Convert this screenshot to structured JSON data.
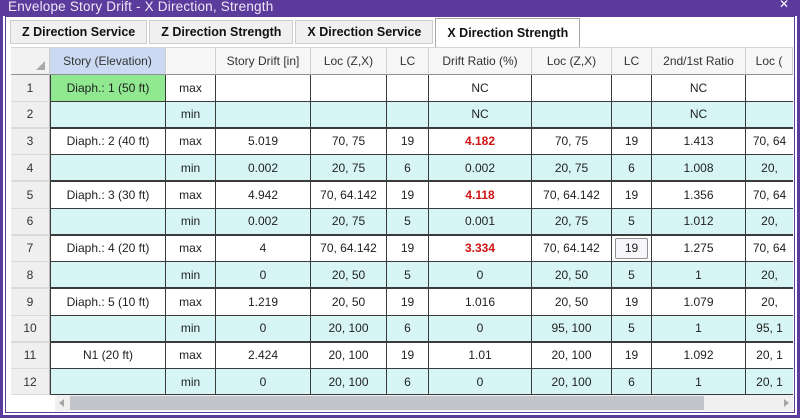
{
  "window": {
    "title": "Envelope Story Drift - X Direction, Strength",
    "close_glyph": "✕"
  },
  "tabs": [
    {
      "label": "Z Direction Service",
      "active": false
    },
    {
      "label": "Z Direction Strength",
      "active": false
    },
    {
      "label": "X Direction Service",
      "active": false
    },
    {
      "label": "X Direction Strength",
      "active": true
    }
  ],
  "table": {
    "corner_icon": "select-all-triangle",
    "headers": [
      "Story (Elevation)",
      "",
      "Story Drift [in]",
      "Loc (Z,X)",
      "LC",
      "Drift Ratio (%)",
      "Loc (Z,X)",
      "LC",
      "2nd/1st Ratio",
      "Loc ("
    ],
    "rows": [
      {
        "num": "1",
        "story": "Diaph.: 1 (50 ft)",
        "story_green": true,
        "mode": "max",
        "drift": "",
        "loc1": "",
        "lc1": "",
        "ratio": "NC",
        "ratio_red": false,
        "loc2": "",
        "lc2": "",
        "ratio2": "NC",
        "loc3": ""
      },
      {
        "num": "2",
        "story": "",
        "story_green": false,
        "mode": "min",
        "drift": "",
        "loc1": "",
        "lc1": "",
        "ratio": "NC",
        "ratio_red": false,
        "loc2": "",
        "lc2": "",
        "ratio2": "NC",
        "loc3": ""
      },
      {
        "num": "3",
        "story": "Diaph.: 2 (40 ft)",
        "story_green": false,
        "mode": "max",
        "drift": "5.019",
        "loc1": "70, 75",
        "lc1": "19",
        "ratio": "4.182",
        "ratio_red": true,
        "loc2": "70, 75",
        "lc2": "19",
        "ratio2": "1.413",
        "loc3": "70, 64"
      },
      {
        "num": "4",
        "story": "",
        "story_green": false,
        "mode": "min",
        "drift": "0.002",
        "loc1": "20, 75",
        "lc1": "6",
        "ratio": "0.002",
        "ratio_red": false,
        "loc2": "20, 75",
        "lc2": "6",
        "ratio2": "1.008",
        "loc3": "20,"
      },
      {
        "num": "5",
        "story": "Diaph.: 3 (30 ft)",
        "story_green": false,
        "mode": "max",
        "drift": "4.942",
        "loc1": "70, 64.142",
        "lc1": "19",
        "ratio": "4.118",
        "ratio_red": true,
        "loc2": "70, 64.142",
        "lc2": "19",
        "ratio2": "1.356",
        "loc3": "70, 64"
      },
      {
        "num": "6",
        "story": "",
        "story_green": false,
        "mode": "min",
        "drift": "0.002",
        "loc1": "20, 75",
        "lc1": "5",
        "ratio": "0.001",
        "ratio_red": false,
        "loc2": "20, 75",
        "lc2": "5",
        "ratio2": "1.012",
        "loc3": "20,"
      },
      {
        "num": "7",
        "story": "Diaph.: 4 (20 ft)",
        "story_green": false,
        "mode": "max",
        "drift": "4",
        "loc1": "70, 64.142",
        "lc1": "19",
        "ratio": "3.334",
        "ratio_red": true,
        "loc2": "70, 64.142",
        "lc2": "19",
        "lc2_focused": true,
        "ratio2": "1.275",
        "loc3": "70, 64"
      },
      {
        "num": "8",
        "story": "",
        "story_green": false,
        "mode": "min",
        "drift": "0",
        "loc1": "20, 50",
        "lc1": "5",
        "ratio": "0",
        "ratio_red": false,
        "loc2": "20, 50",
        "lc2": "5",
        "ratio2": "1",
        "loc3": "20,"
      },
      {
        "num": "9",
        "story": "Diaph.: 5 (10 ft)",
        "story_green": false,
        "mode": "max",
        "drift": "1.219",
        "loc1": "20, 50",
        "lc1": "19",
        "ratio": "1.016",
        "ratio_red": false,
        "loc2": "20, 50",
        "lc2": "19",
        "ratio2": "1.079",
        "loc3": "20,"
      },
      {
        "num": "10",
        "story": "",
        "story_green": false,
        "mode": "min",
        "drift": "0",
        "loc1": "20, 100",
        "lc1": "6",
        "ratio": "0",
        "ratio_red": false,
        "loc2": "95, 100",
        "lc2": "5",
        "ratio2": "1",
        "loc3": "95, 1"
      },
      {
        "num": "11",
        "story": "N1 (20 ft)",
        "story_green": false,
        "mode": "max",
        "drift": "2.424",
        "loc1": "20, 100",
        "lc1": "19",
        "ratio": "1.01",
        "ratio_red": false,
        "loc2": "20, 100",
        "lc2": "19",
        "ratio2": "1.092",
        "loc3": "20, 1"
      },
      {
        "num": "12",
        "story": "",
        "story_green": false,
        "mode": "min",
        "drift": "0",
        "loc1": "20, 100",
        "lc1": "6",
        "ratio": "0",
        "ratio_red": false,
        "loc2": "20, 100",
        "lc2": "6",
        "ratio2": "1",
        "loc3": "20, 1"
      }
    ]
  },
  "colors": {
    "titlebar_purple": "#5b3b9b",
    "alert_red": "#d01414",
    "min_row_cyan": "#d7f5f5",
    "selected_story_green": "#90e890",
    "story_header_blue": "#ccd9f2",
    "grid_line_dark": "#3a3a3a"
  }
}
